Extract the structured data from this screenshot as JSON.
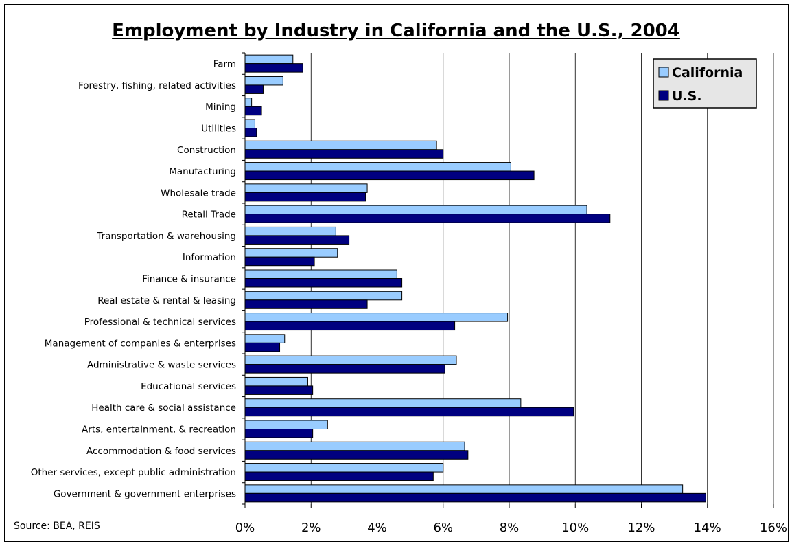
{
  "chart_data": {
    "type": "bar",
    "orientation": "horizontal",
    "title": "Employment by Industry in California and the U.S., 2004",
    "source": "Source: BEA, REIS",
    "xlim": [
      0,
      16
    ],
    "xticks": [
      0,
      2,
      4,
      6,
      8,
      10,
      12,
      14,
      16
    ],
    "xtick_labels": [
      "0%",
      "2%",
      "4%",
      "6%",
      "8%",
      "10%",
      "12%",
      "14%",
      "16%"
    ],
    "grid": "vertical",
    "legend_position": "top-right",
    "categories": [
      "Farm",
      "Forestry, fishing, related activities",
      "Mining",
      "Utilities",
      "Construction",
      "Manufacturing",
      "Wholesale trade",
      "Retail Trade",
      "Transportation & warehousing",
      "Information",
      "Finance & insurance",
      "Real estate & rental & leasing",
      "Professional & technical services",
      "Management of companies & enterprises",
      "Administrative & waste services",
      "Educational services",
      "Health care & social assistance",
      "Arts, entertainment, & recreation",
      "Accommodation & food services",
      "Other services, except public administration",
      "Government & government enterprises"
    ],
    "series": [
      {
        "name": "California",
        "color": "#99ccff",
        "values": [
          1.45,
          1.15,
          0.2,
          0.3,
          5.8,
          8.05,
          3.7,
          10.35,
          2.75,
          2.8,
          4.6,
          4.75,
          7.95,
          1.2,
          6.4,
          1.9,
          8.35,
          2.5,
          6.65,
          6.0,
          13.25
        ]
      },
      {
        "name": "U.S.",
        "color": "#000080",
        "values": [
          1.75,
          0.55,
          0.5,
          0.35,
          6.0,
          8.75,
          3.65,
          11.05,
          3.15,
          2.1,
          4.75,
          3.7,
          6.35,
          1.05,
          6.05,
          2.05,
          9.95,
          2.05,
          6.75,
          5.7,
          13.95
        ]
      }
    ]
  }
}
